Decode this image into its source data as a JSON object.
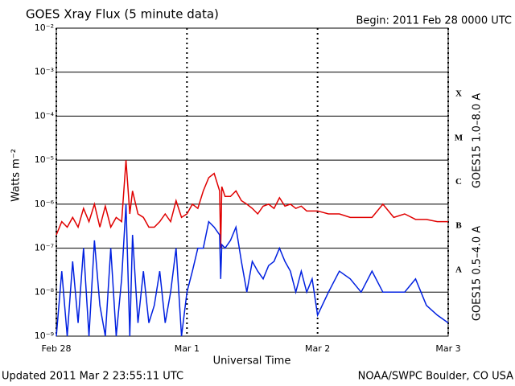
{
  "chart_data": {
    "type": "line",
    "title": "GOES Xray Flux (5 minute data)",
    "subtitle": "Begin:  2011 Feb 28 0000 UTC",
    "y_label": "Watts m⁻²",
    "x_label": "Universal Time",
    "footer_left": "Updated 2011 Mar  2 23:55:11 UTC",
    "footer_right": "NOAA/SWPC Boulder, CO USA",
    "log_scale": true,
    "grid": true,
    "xlim": [
      0,
      72
    ],
    "xticks": [
      {
        "value": 0,
        "label": "Feb 28"
      },
      {
        "value": 24,
        "label": "Mar 1"
      },
      {
        "value": 48,
        "label": "Mar 2"
      },
      {
        "value": 72,
        "label": "Mar 3"
      }
    ],
    "ylim": [
      1e-09,
      0.01
    ],
    "yticks": [
      {
        "value": 1e-09,
        "label": "10⁻⁹"
      },
      {
        "value": 1e-08,
        "label": "10⁻⁸"
      },
      {
        "value": 1e-07,
        "label": "10⁻⁷"
      },
      {
        "value": 1e-06,
        "label": "10⁻⁶"
      },
      {
        "value": 1e-05,
        "label": "10⁻⁵"
      },
      {
        "value": 0.0001,
        "label": "10⁻⁴"
      },
      {
        "value": 0.001,
        "label": "10⁻³"
      },
      {
        "value": 0.01,
        "label": "10⁻²"
      }
    ],
    "flare_classes": [
      {
        "label": "A",
        "value": 1e-08
      },
      {
        "label": "B",
        "value": 1e-07
      },
      {
        "label": "C",
        "value": 1e-06
      },
      {
        "label": "M",
        "value": 1e-05
      },
      {
        "label": "X",
        "value": 0.0001
      }
    ],
    "x": [
      0,
      1,
      2,
      3,
      4,
      5,
      6,
      7,
      8,
      9,
      10,
      11,
      12,
      12.8,
      13.5,
      14,
      15,
      16,
      17,
      18,
      19,
      20,
      21,
      22,
      23,
      24,
      25,
      26,
      27,
      28,
      29,
      30,
      30.2,
      30.4,
      31,
      32,
      33,
      34,
      35,
      36,
      37,
      38,
      39,
      40,
      41,
      42,
      43,
      44,
      45,
      46,
      47,
      48,
      50,
      52,
      54,
      56,
      58,
      60,
      62,
      64,
      66,
      68,
      70,
      72
    ],
    "series": [
      {
        "name": "GOES15 1.0–8.0 A",
        "color": "#e00000",
        "values": [
          2e-07,
          4e-07,
          3e-07,
          5e-07,
          3e-07,
          8e-07,
          4e-07,
          1e-06,
          3e-07,
          9e-07,
          3e-07,
          5e-07,
          4e-07,
          1e-05,
          6e-07,
          2e-06,
          6e-07,
          5e-07,
          3e-07,
          3e-07,
          4e-07,
          6e-07,
          4e-07,
          1.2e-06,
          5e-07,
          6e-07,
          1e-06,
          8e-07,
          2e-06,
          4e-06,
          5e-06,
          2e-06,
          1e-07,
          2.5e-06,
          1.5e-06,
          1.5e-06,
          2e-06,
          1.2e-06,
          1e-06,
          8e-07,
          6e-07,
          9e-07,
          1e-06,
          8e-07,
          1.4e-06,
          9e-07,
          1e-06,
          8e-07,
          9e-07,
          7e-07,
          7e-07,
          7e-07,
          6e-07,
          6e-07,
          5e-07,
          5e-07,
          5e-07,
          1e-06,
          5e-07,
          6e-07,
          4.5e-07,
          4.5e-07,
          4e-07,
          4e-07
        ]
      },
      {
        "name": "GOES15 0.5–4.0 A",
        "color": "#0020e0",
        "values": [
          1e-09,
          3e-08,
          1e-09,
          5e-08,
          2e-09,
          1e-07,
          1e-09,
          1.5e-07,
          5e-09,
          1e-09,
          1e-07,
          1e-09,
          2e-08,
          1e-06,
          1e-09,
          2e-07,
          2e-09,
          3e-08,
          2e-09,
          5e-09,
          3e-08,
          2e-09,
          1e-08,
          1e-07,
          1e-09,
          1e-08,
          3e-08,
          1e-07,
          1e-07,
          4e-07,
          3e-07,
          2e-07,
          2e-08,
          1.2e-07,
          1e-07,
          1.5e-07,
          3e-07,
          5e-08,
          1e-08,
          5e-08,
          3e-08,
          2e-08,
          4e-08,
          5e-08,
          1e-07,
          5e-08,
          3e-08,
          1e-08,
          3e-08,
          1e-08,
          2e-08,
          3e-09,
          1e-08,
          3e-08,
          2e-08,
          1e-08,
          3e-08,
          1e-08,
          1e-08,
          1e-08,
          2e-08,
          5e-09,
          3e-09,
          2e-09
        ]
      }
    ]
  }
}
